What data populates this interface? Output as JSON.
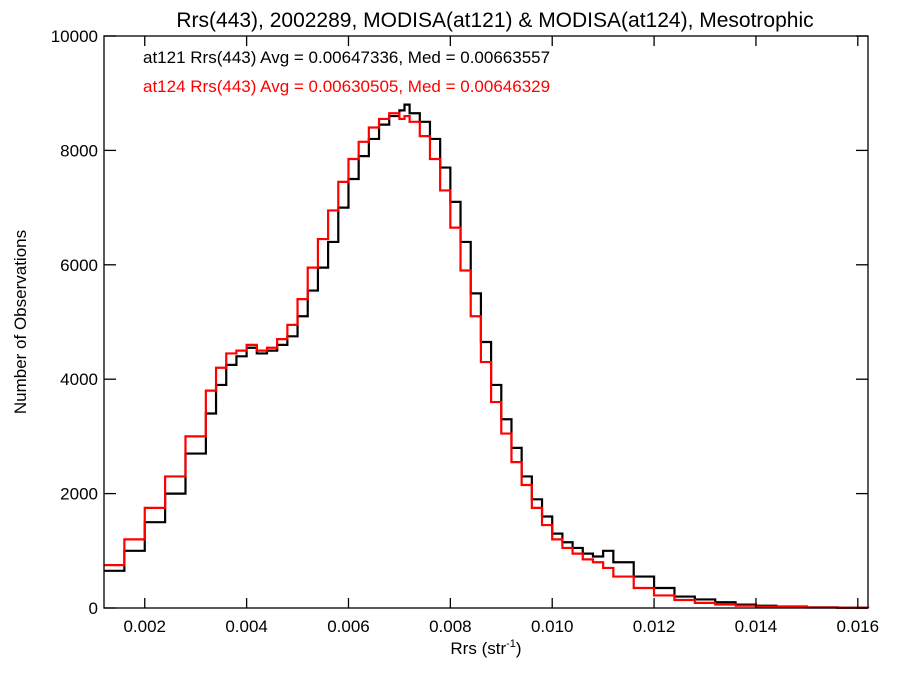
{
  "chart_data": {
    "type": "line",
    "step": true,
    "title": "Rrs(443), 2002289, MODISA(at121) & MODISA(at124), Mesotrophic",
    "xlabel": "Rrs (str",
    "xlabel_superscript": "-1",
    "xlabel_suffix": ")",
    "ylabel": "Number of Observations",
    "xlim": [
      0.0012,
      0.0162
    ],
    "ylim": [
      0,
      10000
    ],
    "x_ticks": [
      0.002,
      0.004,
      0.006,
      0.008,
      0.01,
      0.012,
      0.014,
      0.016
    ],
    "x_tick_labels": [
      "0.002",
      "0.004",
      "0.006",
      "0.008",
      "0.010",
      "0.012",
      "0.014",
      "0.016"
    ],
    "y_ticks": [
      0,
      2000,
      4000,
      6000,
      8000,
      10000
    ],
    "y_tick_labels": [
      "0",
      "2000",
      "4000",
      "6000",
      "8000",
      "10000"
    ],
    "grid": false,
    "annotations": [
      {
        "text": "at121 Rrs(443) Avg = 0.00647336, Med = 0.00663557",
        "color": "#000000"
      },
      {
        "text": "at124 Rrs(443) Avg = 0.00630505, Med = 0.00646329",
        "color": "#ff0000"
      }
    ],
    "series": [
      {
        "color": "#000000",
        "x": [
          0.0012,
          0.0016,
          0.002,
          0.0024,
          0.0028,
          0.0032,
          0.0034,
          0.0036,
          0.0038,
          0.004,
          0.0042,
          0.0044,
          0.0046,
          0.0048,
          0.005,
          0.0052,
          0.0054,
          0.0056,
          0.0058,
          0.006,
          0.0062,
          0.0064,
          0.0066,
          0.0068,
          0.007,
          0.0071,
          0.0072,
          0.0074,
          0.0076,
          0.0078,
          0.008,
          0.0082,
          0.0084,
          0.0086,
          0.0088,
          0.009,
          0.0092,
          0.0094,
          0.0096,
          0.0098,
          0.01,
          0.0102,
          0.0104,
          0.0106,
          0.0108,
          0.011,
          0.0112,
          0.0116,
          0.012,
          0.0124,
          0.0128,
          0.0132,
          0.0136,
          0.014,
          0.0144,
          0.015,
          0.0156,
          0.0162
        ],
        "y": [
          650,
          1000,
          1500,
          2000,
          2700,
          3400,
          3900,
          4250,
          4400,
          4550,
          4450,
          4500,
          4600,
          4750,
          5100,
          5550,
          5950,
          6400,
          7000,
          7500,
          7900,
          8200,
          8450,
          8600,
          8700,
          8800,
          8650,
          8500,
          8200,
          7700,
          7100,
          6400,
          5500,
          4650,
          3900,
          3300,
          2800,
          2300,
          1900,
          1600,
          1300,
          1150,
          1050,
          950,
          900,
          1000,
          800,
          550,
          350,
          200,
          150,
          100,
          60,
          40,
          25,
          12,
          5,
          2
        ]
      },
      {
        "color": "#ff0000",
        "x": [
          0.0012,
          0.0016,
          0.002,
          0.0024,
          0.0028,
          0.0032,
          0.0034,
          0.0036,
          0.0038,
          0.004,
          0.0042,
          0.0044,
          0.0046,
          0.0048,
          0.005,
          0.0052,
          0.0054,
          0.0056,
          0.0058,
          0.006,
          0.0062,
          0.0064,
          0.0066,
          0.0068,
          0.007,
          0.0071,
          0.0072,
          0.0074,
          0.0076,
          0.0078,
          0.008,
          0.0082,
          0.0084,
          0.0086,
          0.0088,
          0.009,
          0.0092,
          0.0094,
          0.0096,
          0.0098,
          0.01,
          0.0102,
          0.0104,
          0.0106,
          0.0108,
          0.011,
          0.0112,
          0.0116,
          0.012,
          0.0124,
          0.0128,
          0.0132,
          0.0136,
          0.014,
          0.0144,
          0.015,
          0.0156,
          0.0162
        ],
        "y": [
          750,
          1200,
          1750,
          2300,
          3000,
          3800,
          4200,
          4450,
          4500,
          4600,
          4500,
          4550,
          4700,
          4950,
          5400,
          5950,
          6450,
          6950,
          7450,
          7850,
          8150,
          8400,
          8550,
          8650,
          8550,
          8600,
          8500,
          8250,
          7850,
          7300,
          6650,
          5900,
          5100,
          4300,
          3600,
          3050,
          2550,
          2150,
          1750,
          1450,
          1200,
          1050,
          950,
          850,
          800,
          700,
          550,
          350,
          220,
          140,
          90,
          60,
          40,
          25,
          15,
          8,
          3,
          1
        ]
      }
    ]
  }
}
